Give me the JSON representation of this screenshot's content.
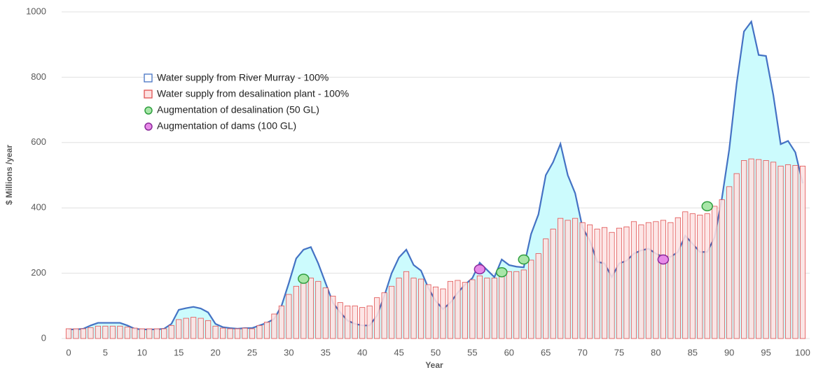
{
  "chart_data": {
    "type": "bar",
    "x_label": "Year",
    "y_label": "$ Millions /year",
    "x": [
      0,
      1,
      2,
      3,
      4,
      5,
      6,
      7,
      8,
      9,
      10,
      11,
      12,
      13,
      14,
      15,
      16,
      17,
      18,
      19,
      20,
      21,
      22,
      23,
      24,
      25,
      26,
      27,
      28,
      29,
      30,
      31,
      32,
      33,
      34,
      35,
      36,
      37,
      38,
      39,
      40,
      41,
      42,
      43,
      44,
      45,
      46,
      47,
      48,
      49,
      50,
      51,
      52,
      53,
      54,
      55,
      56,
      57,
      58,
      59,
      60,
      61,
      62,
      63,
      64,
      65,
      66,
      67,
      68,
      69,
      70,
      71,
      72,
      73,
      74,
      75,
      76,
      77,
      78,
      79,
      80,
      81,
      82,
      83,
      84,
      85,
      86,
      87,
      88,
      89,
      90,
      91,
      92,
      93,
      94,
      95,
      96,
      97,
      98,
      99,
      100
    ],
    "xlim": [
      0,
      100
    ],
    "xticks": [
      0,
      5,
      10,
      15,
      20,
      25,
      30,
      35,
      40,
      45,
      50,
      55,
      60,
      65,
      70,
      75,
      80,
      85,
      90,
      95,
      100
    ],
    "ylim": [
      0,
      1000
    ],
    "yticks": [
      0,
      200,
      400,
      600,
      800,
      1000
    ],
    "grid": true,
    "series": [
      {
        "name": "Water supply from River Murray - 100%",
        "type": "area",
        "color": "#4472c4",
        "fill": "#ccfbfd",
        "values": [
          28,
          28,
          30,
          40,
          48,
          48,
          48,
          48,
          40,
          30,
          28,
          28,
          28,
          30,
          45,
          88,
          93,
          97,
          92,
          80,
          45,
          35,
          32,
          30,
          32,
          32,
          40,
          48,
          60,
          100,
          170,
          245,
          272,
          280,
          230,
          170,
          110,
          80,
          55,
          45,
          40,
          40,
          70,
          130,
          200,
          248,
          272,
          225,
          208,
          155,
          115,
          90,
          110,
          140,
          165,
          185,
          232,
          210,
          188,
          242,
          225,
          220,
          218,
          320,
          380,
          500,
          540,
          596,
          500,
          445,
          340,
          300,
          235,
          230,
          188,
          230,
          238,
          260,
          270,
          275,
          260,
          250,
          250,
          265,
          315,
          290,
          265,
          265,
          310,
          430,
          580,
          780,
          940,
          970,
          868,
          865,
          745,
          595,
          605,
          570,
          475
        ]
      },
      {
        "name": "Water supply from desalination plant - 100%",
        "type": "bar",
        "color": "#e05050",
        "fill": "#fde2e2",
        "values": [
          30,
          30,
          30,
          33,
          38,
          38,
          38,
          38,
          35,
          32,
          30,
          30,
          30,
          30,
          40,
          58,
          62,
          65,
          62,
          55,
          38,
          32,
          30,
          30,
          32,
          30,
          40,
          50,
          75,
          100,
          135,
          160,
          170,
          185,
          175,
          155,
          130,
          110,
          100,
          100,
          95,
          100,
          125,
          140,
          160,
          185,
          205,
          185,
          182,
          165,
          158,
          152,
          175,
          178,
          172,
          180,
          192,
          185,
          185,
          195,
          205,
          205,
          210,
          240,
          260,
          305,
          335,
          368,
          362,
          368,
          355,
          348,
          335,
          340,
          325,
          338,
          342,
          358,
          348,
          355,
          358,
          362,
          355,
          370,
          388,
          382,
          378,
          382,
          405,
          425,
          465,
          505,
          545,
          550,
          548,
          545,
          540,
          528,
          532,
          530,
          528
        ]
      },
      {
        "name": "Augmentation of desalination (50 GL)",
        "type": "scatter",
        "color": "#2e9e3e",
        "fill": "#a8e6a8",
        "x": [
          32,
          59,
          62,
          87
        ],
        "values": [
          183,
          203,
          242,
          405
        ]
      },
      {
        "name": "Augmentation of dams (100 GL)",
        "type": "scatter",
        "color": "#8a2a9a",
        "fill": "#e88ae8",
        "x": [
          56,
          81
        ],
        "values": [
          212,
          242
        ]
      }
    ]
  }
}
